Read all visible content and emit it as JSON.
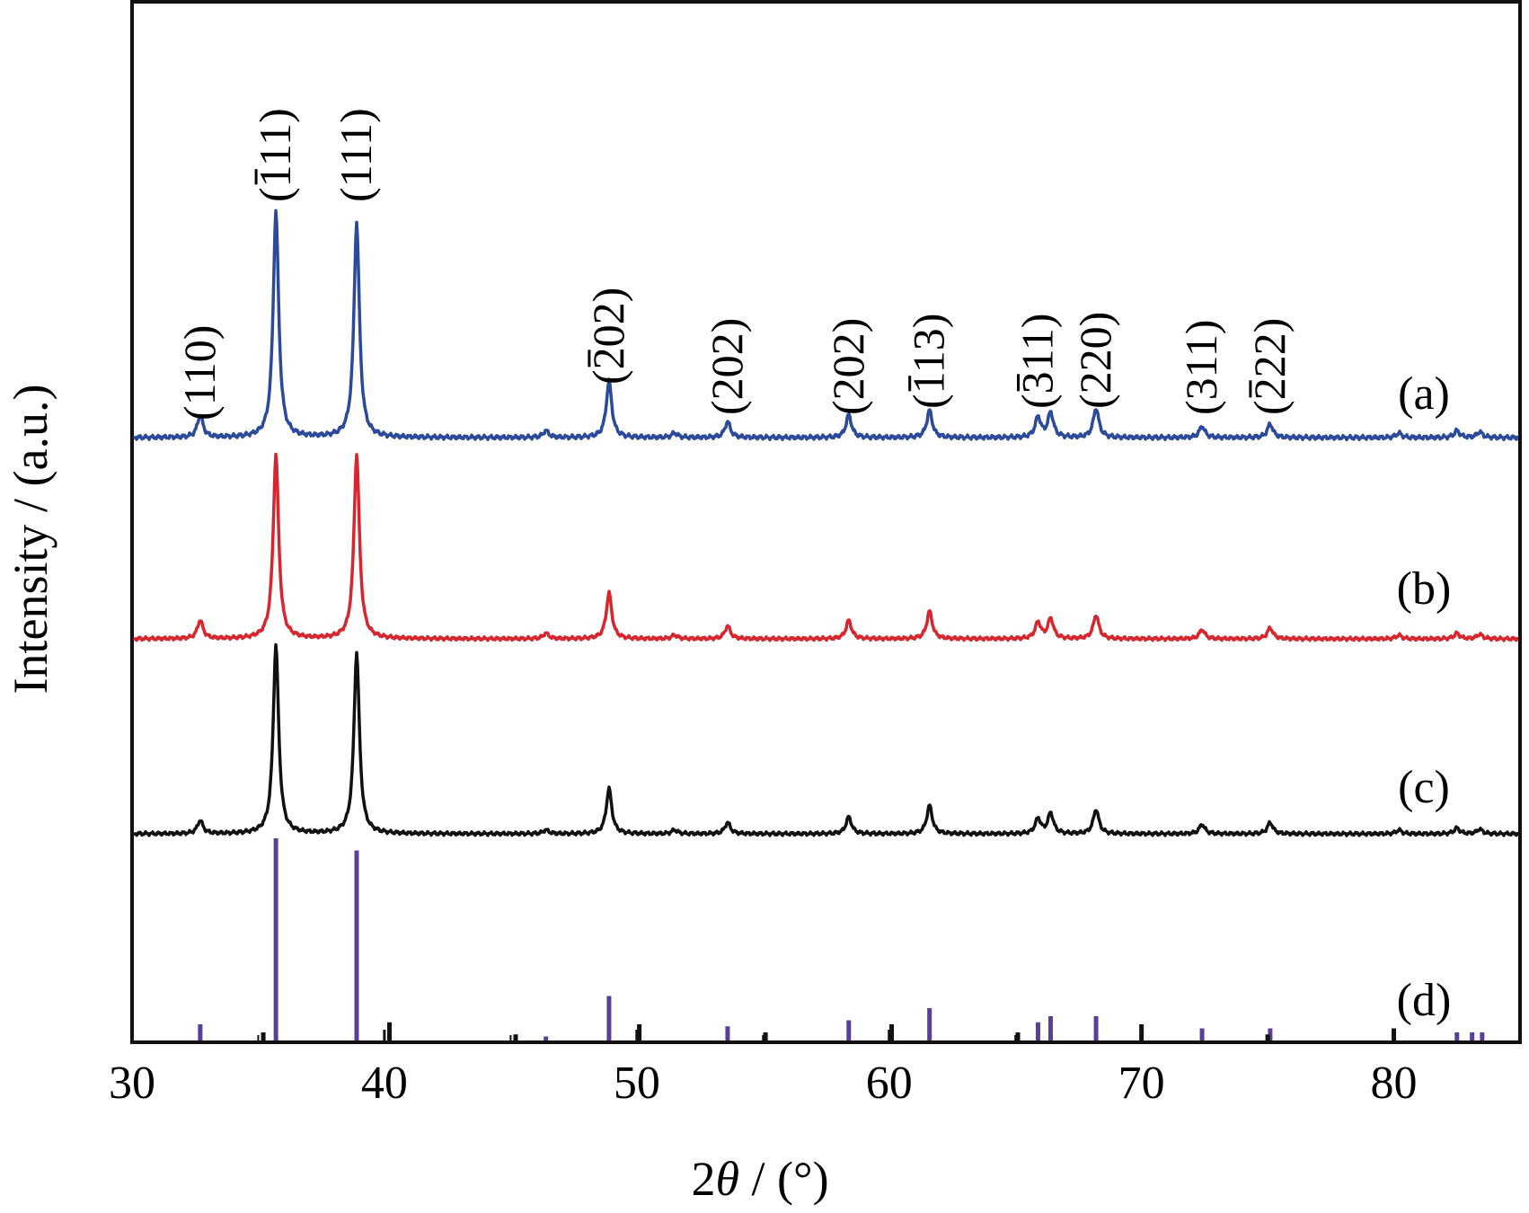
{
  "chart_data": {
    "type": "line",
    "xlabel": "2θ / (°)",
    "ylabel": "Intensity / (a.u.)",
    "xlim": [
      30,
      85
    ],
    "xticks": [
      30,
      40,
      50,
      60,
      70,
      80
    ],
    "yticks_shown": false,
    "grid": false,
    "legend": "none (curves labelled at right)",
    "colors": {
      "a": "#2b4a9b",
      "b": "#d8262e",
      "c": "#111111",
      "d_main": "#5a3f9a",
      "d_black": "#111111"
    },
    "curves": [
      {
        "name": "(a)",
        "peaks": [
          {
            "x": 32.7,
            "h": 0.1
          },
          {
            "x": 35.7,
            "h": 1.0
          },
          {
            "x": 38.9,
            "h": 0.95
          },
          {
            "x": 46.4,
            "h": 0.03
          },
          {
            "x": 48.9,
            "h": 0.25
          },
          {
            "x": 51.5,
            "h": 0.02
          },
          {
            "x": 53.6,
            "h": 0.07
          },
          {
            "x": 58.4,
            "h": 0.1
          },
          {
            "x": 61.6,
            "h": 0.12
          },
          {
            "x": 65.9,
            "h": 0.09
          },
          {
            "x": 66.4,
            "h": 0.11
          },
          {
            "x": 68.2,
            "h": 0.13
          },
          {
            "x": 72.4,
            "h": 0.05
          },
          {
            "x": 75.1,
            "h": 0.06
          },
          {
            "x": 80.2,
            "h": 0.02
          },
          {
            "x": 82.5,
            "h": 0.03
          },
          {
            "x": 83.4,
            "h": 0.025
          }
        ]
      },
      {
        "name": "(b)",
        "peaks": [
          {
            "x": 32.7,
            "h": 0.1
          },
          {
            "x": 35.7,
            "h": 1.0
          },
          {
            "x": 38.9,
            "h": 1.0
          },
          {
            "x": 46.4,
            "h": 0.03
          },
          {
            "x": 48.9,
            "h": 0.25
          },
          {
            "x": 51.5,
            "h": 0.02
          },
          {
            "x": 53.6,
            "h": 0.07
          },
          {
            "x": 58.4,
            "h": 0.1
          },
          {
            "x": 61.6,
            "h": 0.15
          },
          {
            "x": 65.9,
            "h": 0.09
          },
          {
            "x": 66.4,
            "h": 0.11
          },
          {
            "x": 68.2,
            "h": 0.13
          },
          {
            "x": 72.4,
            "h": 0.05
          },
          {
            "x": 75.1,
            "h": 0.06
          },
          {
            "x": 80.2,
            "h": 0.02
          },
          {
            "x": 82.5,
            "h": 0.03
          },
          {
            "x": 83.4,
            "h": 0.025
          }
        ]
      },
      {
        "name": "(c)",
        "peaks": [
          {
            "x": 32.7,
            "h": 0.07
          },
          {
            "x": 35.7,
            "h": 1.0
          },
          {
            "x": 38.9,
            "h": 0.96
          },
          {
            "x": 46.4,
            "h": 0.02
          },
          {
            "x": 48.9,
            "h": 0.24
          },
          {
            "x": 51.5,
            "h": 0.02
          },
          {
            "x": 53.6,
            "h": 0.06
          },
          {
            "x": 58.4,
            "h": 0.09
          },
          {
            "x": 61.6,
            "h": 0.15
          },
          {
            "x": 65.9,
            "h": 0.08
          },
          {
            "x": 66.4,
            "h": 0.11
          },
          {
            "x": 68.2,
            "h": 0.13
          },
          {
            "x": 72.4,
            "h": 0.05
          },
          {
            "x": 75.1,
            "h": 0.06
          },
          {
            "x": 80.2,
            "h": 0.02
          },
          {
            "x": 82.5,
            "h": 0.03
          },
          {
            "x": 83.4,
            "h": 0.025
          }
        ]
      }
    ],
    "reference_d": {
      "name": "(d)",
      "sticks_main": [
        {
          "x": 32.7,
          "h": 0.08
        },
        {
          "x": 35.7,
          "h": 1.0
        },
        {
          "x": 38.9,
          "h": 0.94
        },
        {
          "x": 46.4,
          "h": 0.02
        },
        {
          "x": 48.9,
          "h": 0.22
        },
        {
          "x": 53.6,
          "h": 0.07
        },
        {
          "x": 58.4,
          "h": 0.1
        },
        {
          "x": 61.6,
          "h": 0.16
        },
        {
          "x": 65.9,
          "h": 0.09
        },
        {
          "x": 66.4,
          "h": 0.12
        },
        {
          "x": 68.2,
          "h": 0.12
        },
        {
          "x": 72.4,
          "h": 0.06
        },
        {
          "x": 75.1,
          "h": 0.06
        },
        {
          "x": 82.5,
          "h": 0.04
        },
        {
          "x": 83.1,
          "h": 0.04
        },
        {
          "x": 83.5,
          "h": 0.04
        }
      ],
      "sticks_black": [
        {
          "x": 35.2,
          "h": 0.04
        },
        {
          "x": 40.2,
          "h": 0.09
        },
        {
          "x": 45.2,
          "h": 0.03
        },
        {
          "x": 50.1,
          "h": 0.08
        },
        {
          "x": 55.1,
          "h": 0.04
        },
        {
          "x": 60.1,
          "h": 0.08
        },
        {
          "x": 65.1,
          "h": 0.04
        },
        {
          "x": 70.0,
          "h": 0.08
        },
        {
          "x": 75.0,
          "h": 0.03
        },
        {
          "x": 80.0,
          "h": 0.06
        }
      ]
    },
    "peak_labels": [
      {
        "x": 32.7,
        "text": "(110)",
        "bar_over": ""
      },
      {
        "x": 35.7,
        "text": "(111)",
        "bar_over": "1"
      },
      {
        "x": 38.9,
        "text": "(111)",
        "bar_over": ""
      },
      {
        "x": 48.9,
        "text": "(202)",
        "bar_over": "2"
      },
      {
        "x": 53.6,
        "text": "(202)",
        "bar_over": ""
      },
      {
        "x": 58.4,
        "text": "(202)",
        "bar_over": ""
      },
      {
        "x": 61.6,
        "text": "(113)",
        "bar_over": "1"
      },
      {
        "x": 65.9,
        "text": "(311)",
        "bar_over": "3"
      },
      {
        "x": 68.2,
        "text": "(220)",
        "bar_over": ""
      },
      {
        "x": 72.4,
        "text": "(311)",
        "bar_over": ""
      },
      {
        "x": 75.1,
        "text": "(222)",
        "bar_over": "2"
      }
    ]
  }
}
